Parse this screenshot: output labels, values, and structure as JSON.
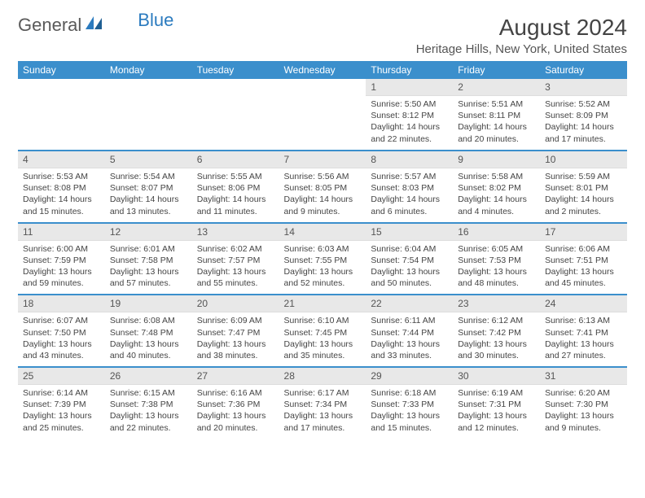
{
  "logo": {
    "word1": "General",
    "word2": "Blue"
  },
  "title": "August 2024",
  "location": "Heritage Hills, New York, United States",
  "dayNames": [
    "Sunday",
    "Monday",
    "Tuesday",
    "Wednesday",
    "Thursday",
    "Friday",
    "Saturday"
  ],
  "colors": {
    "header_bg": "#3b8fcc",
    "daynum_bg": "#e8e8e8",
    "border": "#3b8fcc",
    "logo_gray": "#5a5a5a",
    "logo_blue": "#2b7bbf"
  },
  "startOffset": 4,
  "daysInMonth": 31,
  "days": {
    "1": {
      "sr": "5:50 AM",
      "ss": "8:12 PM",
      "dl": "14 hours and 22 minutes."
    },
    "2": {
      "sr": "5:51 AM",
      "ss": "8:11 PM",
      "dl": "14 hours and 20 minutes."
    },
    "3": {
      "sr": "5:52 AM",
      "ss": "8:09 PM",
      "dl": "14 hours and 17 minutes."
    },
    "4": {
      "sr": "5:53 AM",
      "ss": "8:08 PM",
      "dl": "14 hours and 15 minutes."
    },
    "5": {
      "sr": "5:54 AM",
      "ss": "8:07 PM",
      "dl": "14 hours and 13 minutes."
    },
    "6": {
      "sr": "5:55 AM",
      "ss": "8:06 PM",
      "dl": "14 hours and 11 minutes."
    },
    "7": {
      "sr": "5:56 AM",
      "ss": "8:05 PM",
      "dl": "14 hours and 9 minutes."
    },
    "8": {
      "sr": "5:57 AM",
      "ss": "8:03 PM",
      "dl": "14 hours and 6 minutes."
    },
    "9": {
      "sr": "5:58 AM",
      "ss": "8:02 PM",
      "dl": "14 hours and 4 minutes."
    },
    "10": {
      "sr": "5:59 AM",
      "ss": "8:01 PM",
      "dl": "14 hours and 2 minutes."
    },
    "11": {
      "sr": "6:00 AM",
      "ss": "7:59 PM",
      "dl": "13 hours and 59 minutes."
    },
    "12": {
      "sr": "6:01 AM",
      "ss": "7:58 PM",
      "dl": "13 hours and 57 minutes."
    },
    "13": {
      "sr": "6:02 AM",
      "ss": "7:57 PM",
      "dl": "13 hours and 55 minutes."
    },
    "14": {
      "sr": "6:03 AM",
      "ss": "7:55 PM",
      "dl": "13 hours and 52 minutes."
    },
    "15": {
      "sr": "6:04 AM",
      "ss": "7:54 PM",
      "dl": "13 hours and 50 minutes."
    },
    "16": {
      "sr": "6:05 AM",
      "ss": "7:53 PM",
      "dl": "13 hours and 48 minutes."
    },
    "17": {
      "sr": "6:06 AM",
      "ss": "7:51 PM",
      "dl": "13 hours and 45 minutes."
    },
    "18": {
      "sr": "6:07 AM",
      "ss": "7:50 PM",
      "dl": "13 hours and 43 minutes."
    },
    "19": {
      "sr": "6:08 AM",
      "ss": "7:48 PM",
      "dl": "13 hours and 40 minutes."
    },
    "20": {
      "sr": "6:09 AM",
      "ss": "7:47 PM",
      "dl": "13 hours and 38 minutes."
    },
    "21": {
      "sr": "6:10 AM",
      "ss": "7:45 PM",
      "dl": "13 hours and 35 minutes."
    },
    "22": {
      "sr": "6:11 AM",
      "ss": "7:44 PM",
      "dl": "13 hours and 33 minutes."
    },
    "23": {
      "sr": "6:12 AM",
      "ss": "7:42 PM",
      "dl": "13 hours and 30 minutes."
    },
    "24": {
      "sr": "6:13 AM",
      "ss": "7:41 PM",
      "dl": "13 hours and 27 minutes."
    },
    "25": {
      "sr": "6:14 AM",
      "ss": "7:39 PM",
      "dl": "13 hours and 25 minutes."
    },
    "26": {
      "sr": "6:15 AM",
      "ss": "7:38 PM",
      "dl": "13 hours and 22 minutes."
    },
    "27": {
      "sr": "6:16 AM",
      "ss": "7:36 PM",
      "dl": "13 hours and 20 minutes."
    },
    "28": {
      "sr": "6:17 AM",
      "ss": "7:34 PM",
      "dl": "13 hours and 17 minutes."
    },
    "29": {
      "sr": "6:18 AM",
      "ss": "7:33 PM",
      "dl": "13 hours and 15 minutes."
    },
    "30": {
      "sr": "6:19 AM",
      "ss": "7:31 PM",
      "dl": "13 hours and 12 minutes."
    },
    "31": {
      "sr": "6:20 AM",
      "ss": "7:30 PM",
      "dl": "13 hours and 9 minutes."
    }
  },
  "labels": {
    "sunrise": "Sunrise:",
    "sunset": "Sunset:",
    "daylight": "Daylight:"
  }
}
